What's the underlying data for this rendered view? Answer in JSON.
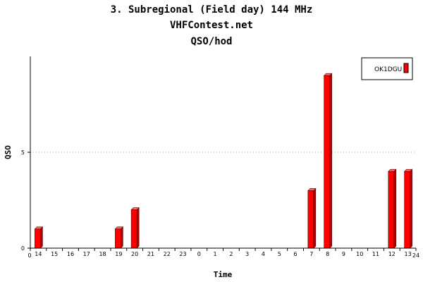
{
  "chart_data": {
    "type": "bar",
    "title_lines": [
      "3. Subregional (Field day) 144 MHz",
      "VHFContest.net",
      "QSO/hod"
    ],
    "xlabel": "Time",
    "ylabel": "QSO",
    "categories": [
      "14",
      "15",
      "16",
      "17",
      "18",
      "19",
      "20",
      "21",
      "22",
      "23",
      "0",
      "1",
      "2",
      "3",
      "4",
      "5",
      "6",
      "7",
      "8",
      "9",
      "10",
      "11",
      "12",
      "13"
    ],
    "axis_start_label": "0",
    "axis_end_label": "24",
    "y_ticks": [
      "0",
      "5"
    ],
    "ylim": [
      0,
      10
    ],
    "grid": "dotted horizontal at 5",
    "legend_position": "top-right",
    "series": [
      {
        "name": "OK1DGU",
        "color": "#ff0000",
        "values": [
          1,
          0,
          0,
          0,
          0,
          1,
          2,
          0,
          0,
          0,
          0,
          0,
          0,
          0,
          0,
          0,
          0,
          3,
          9,
          0,
          0,
          0,
          4,
          4
        ]
      }
    ]
  }
}
